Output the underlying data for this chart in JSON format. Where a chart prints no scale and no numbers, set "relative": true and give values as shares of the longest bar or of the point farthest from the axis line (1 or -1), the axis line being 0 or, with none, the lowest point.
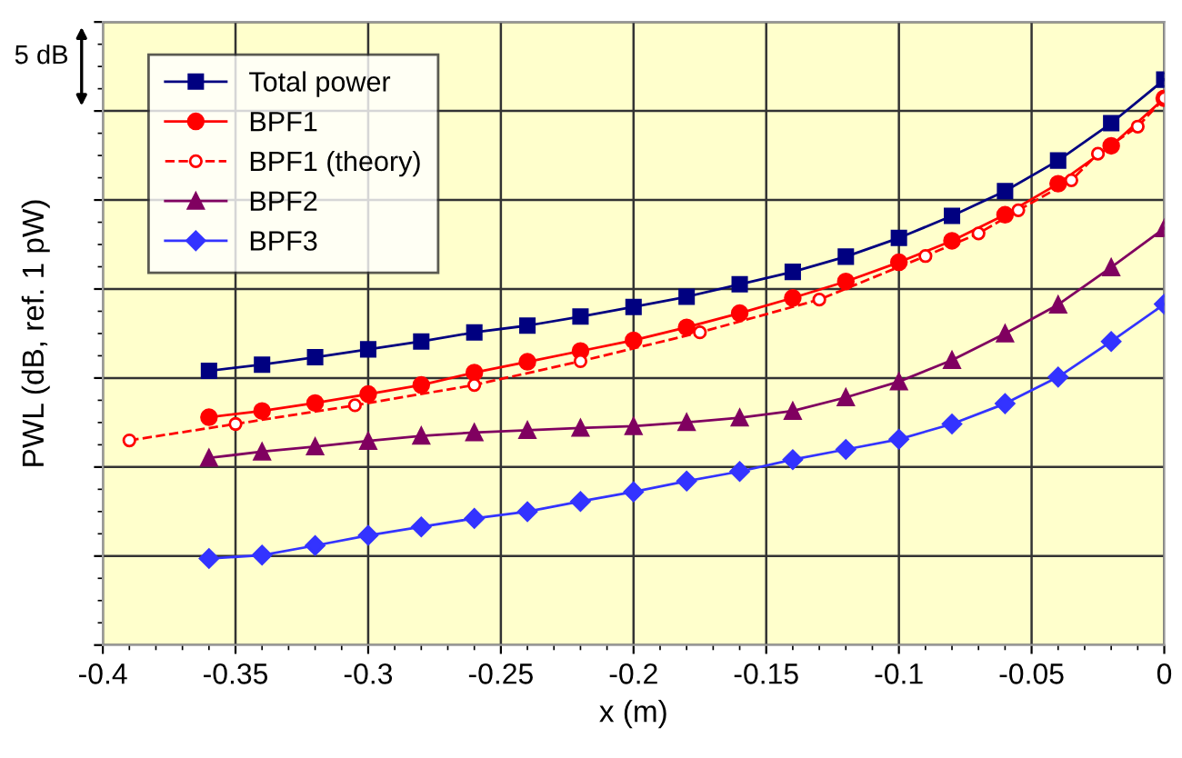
{
  "chart_data": {
    "type": "line",
    "xlabel": "x (m)",
    "ylabel": "PWL (dB, ref. 1 pW)",
    "relative": true,
    "xlim": [
      -0.4,
      0
    ],
    "xticks": [
      -0.4,
      -0.35,
      -0.3,
      -0.25,
      -0.2,
      -0.15,
      -0.1,
      -0.05,
      0
    ],
    "grid": true,
    "legend": "top left",
    "annotations": [
      "5 dB"
    ],
    "x": [
      -0.36,
      -0.34,
      -0.32,
      -0.3,
      -0.28,
      -0.26,
      -0.24,
      -0.22,
      -0.2,
      -0.18,
      -0.16,
      -0.14,
      -0.12,
      -0.1,
      -0.08,
      -0.06,
      -0.04,
      -0.02,
      0
    ],
    "series": [
      {
        "name": "Total power",
        "color": "#000080",
        "marker": "square",
        "line_style": "solid",
        "values": [
          0.485,
          0.496,
          0.509,
          0.523,
          0.537,
          0.553,
          0.565,
          0.581,
          0.598,
          0.616,
          0.638,
          0.66,
          0.687,
          0.72,
          0.759,
          0.803,
          0.857,
          0.923,
          1
        ]
      },
      {
        "name": "BPF1",
        "color": "#ff0000",
        "marker": "circle",
        "line_style": "solid",
        "values": [
          0.403,
          0.414,
          0.428,
          0.444,
          0.46,
          0.482,
          0.501,
          0.52,
          0.539,
          0.562,
          0.587,
          0.614,
          0.643,
          0.677,
          0.715,
          0.761,
          0.816,
          0.883,
          0.967
        ]
      },
      {
        "name": "BPF1 (theory)",
        "color": "#ff0000",
        "marker": "circle",
        "line_style": "dashed",
        "x": [
          -0.39,
          -0.35,
          -0.305,
          -0.26,
          -0.22,
          -0.175,
          -0.13,
          -0.09,
          -0.07,
          -0.055,
          -0.035,
          -0.025,
          -0.01,
          0
        ],
        "values": [
          0.362,
          0.391,
          0.424,
          0.46,
          0.502,
          0.553,
          0.611,
          0.688,
          0.728,
          0.769,
          0.822,
          0.869,
          0.917,
          0.967
        ]
      },
      {
        "name": "BPF2",
        "color": "#800060",
        "marker": "triangle",
        "line_style": "solid",
        "values": [
          0.331,
          0.342,
          0.351,
          0.361,
          0.37,
          0.376,
          0.38,
          0.384,
          0.387,
          0.394,
          0.402,
          0.414,
          0.438,
          0.466,
          0.504,
          0.551,
          0.602,
          0.668,
          0.737
        ]
      },
      {
        "name": "BPF3",
        "color": "#3333ff",
        "marker": "diamond",
        "line_style": "solid",
        "values": [
          0.153,
          0.159,
          0.176,
          0.194,
          0.209,
          0.224,
          0.236,
          0.254,
          0.271,
          0.29,
          0.307,
          0.328,
          0.346,
          0.364,
          0.391,
          0.427,
          0.474,
          0.537,
          0.603
        ]
      }
    ]
  }
}
